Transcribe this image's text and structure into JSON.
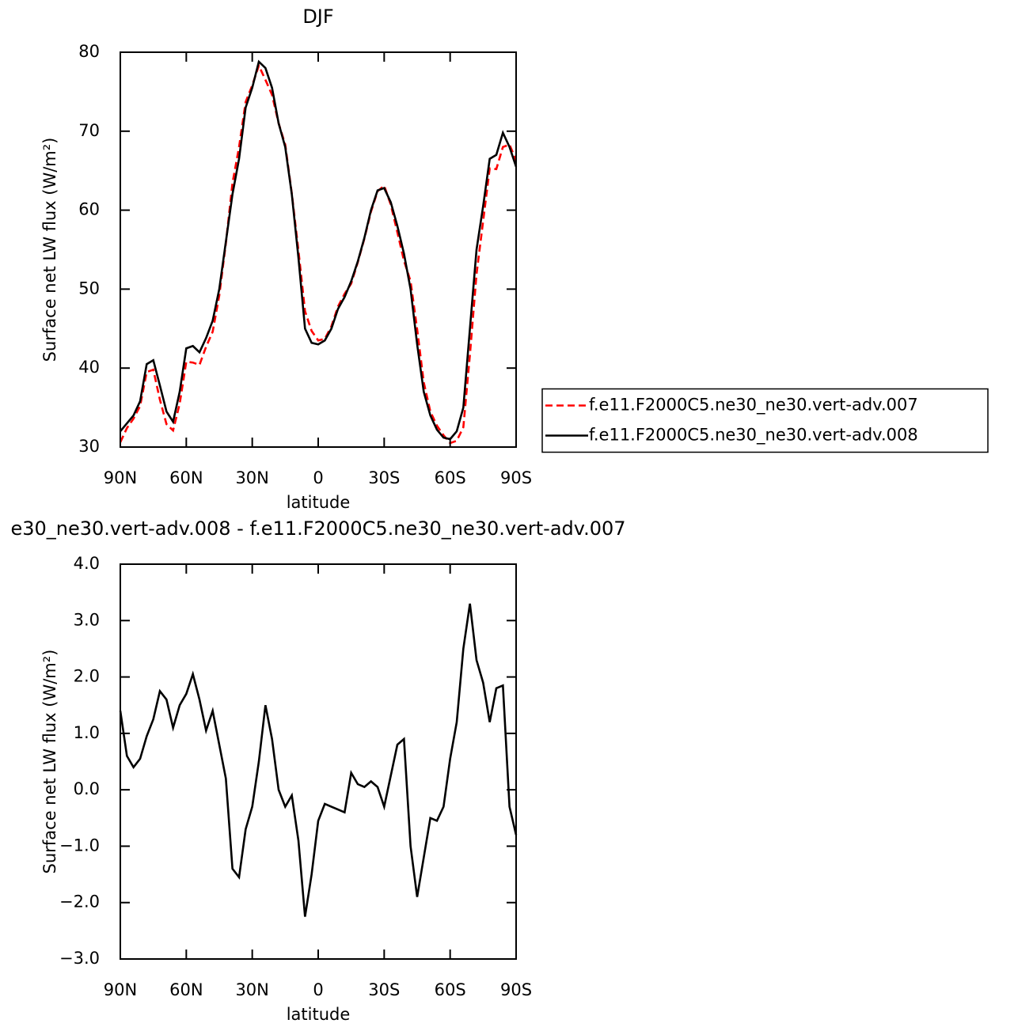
{
  "chart_data": [
    {
      "type": "line",
      "title": "DJF",
      "xlabel": "latitude",
      "ylabel": "Surface net LW flux (W/m²)",
      "x": [
        90,
        87,
        84,
        81,
        78,
        75,
        72,
        69,
        66,
        63,
        60,
        57,
        54,
        51,
        48,
        45,
        42,
        39,
        36,
        33,
        30,
        27,
        24,
        21,
        18,
        15,
        12,
        9,
        6,
        3,
        0,
        -3,
        -6,
        -9,
        -12,
        -15,
        -18,
        -21,
        -24,
        -27,
        -30,
        -33,
        -36,
        -39,
        -42,
        -45,
        -48,
        -51,
        -54,
        -57,
        -60,
        -63,
        -66,
        -69,
        -72,
        -75,
        -78,
        -81,
        -84,
        -87,
        -90
      ],
      "series": [
        {
          "name": "f.e11.F2000C5.ne30_ne30.vert-adv.007",
          "color": "#ff0000",
          "linestyle": "dashed",
          "values": [
            30.6,
            32.4,
            33.6,
            35.2,
            39.5,
            39.8,
            36,
            32.9,
            32.1,
            35.5,
            40.8,
            40.7,
            40.4,
            42.7,
            44.6,
            49.2,
            55.8,
            63.4,
            68,
            73.7,
            75.8,
            78.3,
            76.5,
            74.6,
            71,
            68.3,
            62.1,
            54.9,
            47.2,
            44.7,
            43.5,
            43.7,
            45.3,
            47.8,
            49.4,
            50.7,
            53.4,
            56.4,
            59.8,
            62.4,
            63.1,
            60.7,
            57.2,
            53.6,
            51,
            44.9,
            38.2,
            34.5,
            32.7,
            31.5,
            30.5,
            30.8,
            32.5,
            41.7,
            51.9,
            58.6,
            65.3,
            65.2,
            68,
            68.3,
            66.3
          ]
        },
        {
          "name": "f.e11.F2000C5.ne30_ne30.vert-adv.008",
          "color": "#000000",
          "linestyle": "solid",
          "values": [
            32,
            33,
            34,
            35.8,
            40.5,
            41,
            37.8,
            34.5,
            33.2,
            37,
            42.5,
            42.8,
            42,
            43.8,
            46,
            50,
            56,
            62,
            66.5,
            73,
            75.5,
            78.8,
            78,
            75.5,
            71,
            68,
            62,
            54,
            45,
            43.2,
            43,
            43.5,
            45,
            47.5,
            49,
            51,
            53.5,
            56.5,
            60,
            62.5,
            62.8,
            61,
            58,
            54.5,
            50,
            43,
            37,
            34,
            32.2,
            31.2,
            31,
            32,
            35,
            45,
            55,
            60.5,
            66.5,
            67,
            69.8,
            68,
            65.5
          ]
        }
      ],
      "xlim": [
        90,
        -90
      ],
      "xticks": [
        {
          "value": 90,
          "label": "90N"
        },
        {
          "value": 60,
          "label": "60N"
        },
        {
          "value": 30,
          "label": "30N"
        },
        0,
        {
          "value": -30,
          "label": "30S"
        },
        {
          "value": -60,
          "label": "60S"
        },
        {
          "value": -90,
          "label": "90S"
        }
      ],
      "ylim": [
        30,
        80
      ],
      "yticks": [
        30,
        40,
        50,
        60,
        70,
        80
      ],
      "legend": "right"
    },
    {
      "type": "line",
      "title": "e30_ne30.vert-adv.008 - f.e11.F2000C5.ne30_ne30.vert-adv.007",
      "xlabel": "latitude",
      "ylabel": "Surface net LW flux (W/m²)",
      "x": [
        90,
        87,
        84,
        81,
        78,
        75,
        72,
        69,
        66,
        63,
        60,
        57,
        54,
        51,
        48,
        45,
        42,
        39,
        36,
        33,
        30,
        27,
        24,
        21,
        18,
        15,
        12,
        9,
        6,
        3,
        0,
        -3,
        -6,
        -9,
        -12,
        -15,
        -18,
        -21,
        -24,
        -27,
        -30,
        -33,
        -36,
        -39,
        -42,
        -45,
        -48,
        -51,
        -54,
        -57,
        -60,
        -63,
        -66,
        -69,
        -72,
        -75,
        -78,
        -81,
        -84,
        -87,
        -90
      ],
      "series": [
        {
          "color": "#000000",
          "linestyle": "solid",
          "values": [
            1.4,
            0.6,
            0.4,
            0.55,
            0.95,
            1.25,
            1.75,
            1.6,
            1.1,
            1.5,
            1.7,
            2.05,
            1.6,
            1.05,
            1.4,
            0.8,
            0.2,
            -1.4,
            -1.55,
            -0.7,
            -0.3,
            0.5,
            1.5,
            0.9,
            0,
            -0.3,
            -0.1,
            -0.9,
            -2.25,
            -1.5,
            -0.55,
            -0.25,
            -0.3,
            -0.35,
            -0.4,
            0.3,
            0.1,
            0.05,
            0.15,
            0.05,
            -0.3,
            0.25,
            0.8,
            0.9,
            -1,
            -1.9,
            -1.2,
            -0.5,
            -0.55,
            -0.3,
            0.55,
            1.2,
            2.5,
            3.3,
            2.3,
            1.9,
            1.2,
            1.8,
            1.85,
            -0.3,
            -0.8
          ]
        }
      ],
      "xlim": [
        90,
        -90
      ],
      "xticks": [
        {
          "value": 90,
          "label": "90N"
        },
        {
          "value": 60,
          "label": "60N"
        },
        {
          "value": 30,
          "label": "30N"
        },
        0,
        {
          "value": -30,
          "label": "30S"
        },
        {
          "value": -60,
          "label": "60S"
        },
        {
          "value": -90,
          "label": "90S"
        }
      ],
      "ylim": [
        -3,
        4
      ],
      "yticks": [
        {
          "value": -3,
          "label": "−3.0"
        },
        {
          "value": -2,
          "label": "−2.0"
        },
        {
          "value": -1,
          "label": "−1.0"
        },
        {
          "value": 0,
          "label": "0.0"
        },
        {
          "value": 1,
          "label": "1.0"
        },
        {
          "value": 2,
          "label": "2.0"
        },
        {
          "value": 3,
          "label": "3.0"
        },
        {
          "value": 4,
          "label": "4.0"
        }
      ]
    }
  ]
}
